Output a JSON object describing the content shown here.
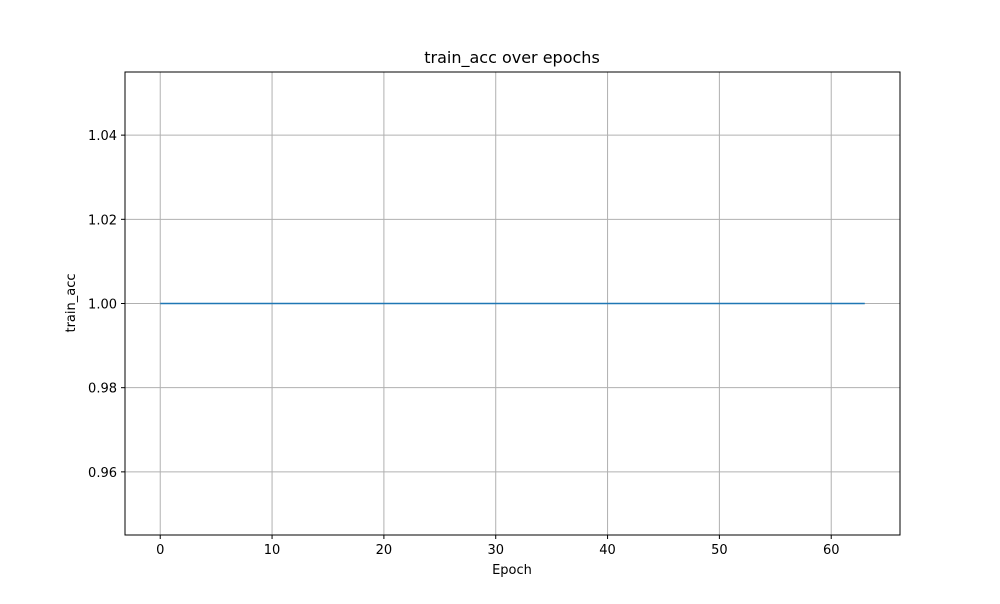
{
  "chart_data": {
    "type": "line",
    "title": "train_acc over epochs",
    "xlabel": "Epoch",
    "ylabel": "train_acc",
    "xlim": [
      -3.15,
      66.15
    ],
    "ylim": [
      0.945,
      1.055
    ],
    "x_ticks": [
      0,
      10,
      20,
      30,
      40,
      50,
      60
    ],
    "y_ticks": [
      0.96,
      0.98,
      1.0,
      1.02,
      1.04
    ],
    "y_tick_labels": [
      "0.96",
      "0.98",
      "1.00",
      "1.02",
      "1.04"
    ],
    "grid": true,
    "series": [
      {
        "color": "#1f77b4",
        "x": [
          0,
          1,
          2,
          3,
          4,
          5,
          6,
          7,
          8,
          9,
          10,
          11,
          12,
          13,
          14,
          15,
          16,
          17,
          18,
          19,
          20,
          21,
          22,
          23,
          24,
          25,
          26,
          27,
          28,
          29,
          30,
          31,
          32,
          33,
          34,
          35,
          36,
          37,
          38,
          39,
          40,
          41,
          42,
          43,
          44,
          45,
          46,
          47,
          48,
          49,
          50,
          51,
          52,
          53,
          54,
          55,
          56,
          57,
          58,
          59,
          60,
          61,
          62,
          63
        ],
        "y": [
          1.0,
          1.0,
          1.0,
          1.0,
          1.0,
          1.0,
          1.0,
          1.0,
          1.0,
          1.0,
          1.0,
          1.0,
          1.0,
          1.0,
          1.0,
          1.0,
          1.0,
          1.0,
          1.0,
          1.0,
          1.0,
          1.0,
          1.0,
          1.0,
          1.0,
          1.0,
          1.0,
          1.0,
          1.0,
          1.0,
          1.0,
          1.0,
          1.0,
          1.0,
          1.0,
          1.0,
          1.0,
          1.0,
          1.0,
          1.0,
          1.0,
          1.0,
          1.0,
          1.0,
          1.0,
          1.0,
          1.0,
          1.0,
          1.0,
          1.0,
          1.0,
          1.0,
          1.0,
          1.0,
          1.0,
          1.0,
          1.0,
          1.0,
          1.0,
          1.0,
          1.0,
          1.0,
          1.0,
          1.0
        ]
      }
    ]
  }
}
